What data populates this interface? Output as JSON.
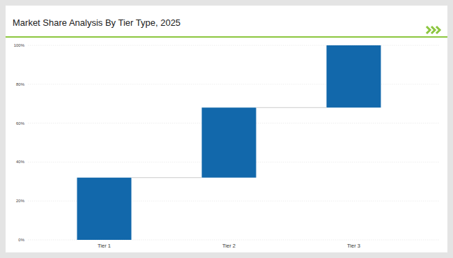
{
  "chart_data": {
    "type": "waterfall",
    "title": "Market Share Analysis By Tier Type, 2025",
    "categories": [
      "Tier 1",
      "Tier 2",
      "Tier 3"
    ],
    "values": [
      32,
      36,
      32
    ],
    "color": "#1268ab",
    "ylim": [
      0,
      100
    ],
    "yticks": [
      {
        "value": 0,
        "label": "0%"
      },
      {
        "value": 20,
        "label": "20%"
      },
      {
        "value": 40,
        "label": "40%"
      },
      {
        "value": 60,
        "label": "60%"
      },
      {
        "value": 80,
        "label": "80%"
      },
      {
        "value": 100,
        "label": "100%"
      }
    ],
    "grid": true
  }
}
